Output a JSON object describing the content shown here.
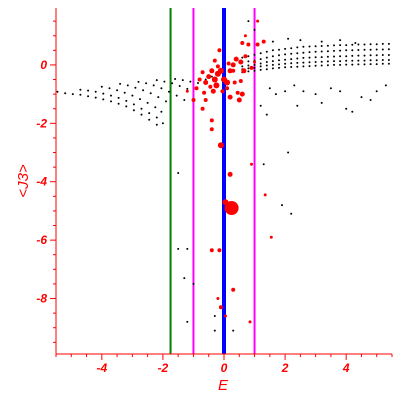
{
  "chart_data": {
    "type": "scatter",
    "title": "",
    "xlabel": "E",
    "ylabel": "<J3>",
    "xlim": [
      -5.5,
      5.5
    ],
    "ylim": [
      -9.9,
      1.95
    ],
    "grid": false,
    "x_ticks": [
      -4,
      -2,
      0,
      2,
      4
    ],
    "x_tick_labels": [
      "-4",
      "-2",
      "0",
      "2",
      "4"
    ],
    "y_ticks": [
      0,
      -2,
      -4,
      -6,
      -8
    ],
    "y_tick_labels": [
      "0",
      "-2",
      "-4",
      "-6",
      "-8"
    ],
    "vertical_lines": [
      {
        "x": -1.75,
        "color": "#008000",
        "width": "thin"
      },
      {
        "x": -1.0,
        "color": "#ff00ff",
        "width": "thin"
      },
      {
        "x": 0.0,
        "color": "#0000ff",
        "width": "thick"
      },
      {
        "x": 1.0,
        "color": "#ff00ff",
        "width": "thin"
      }
    ],
    "series": [
      {
        "color": "#000000",
        "marker": "small dot",
        "points": [
          [
            -5.45,
            -0.92
          ],
          [
            -5.2,
            -0.97
          ],
          [
            -4.95,
            -1.0
          ],
          [
            -4.7,
            -1.02
          ],
          [
            -4.45,
            -1.07
          ],
          [
            -4.2,
            -1.12
          ],
          [
            -3.95,
            -1.18
          ],
          [
            -3.7,
            -1.25
          ],
          [
            -3.45,
            -1.33
          ],
          [
            -3.2,
            -1.42
          ],
          [
            -2.95,
            -1.55
          ],
          [
            -2.7,
            -1.7
          ],
          [
            -2.45,
            -1.88
          ],
          [
            -2.2,
            -2.05
          ],
          [
            -4.7,
            -0.85
          ],
          [
            -4.45,
            -0.88
          ],
          [
            -4.2,
            -0.92
          ],
          [
            -3.95,
            -0.98
          ],
          [
            -3.7,
            -1.05
          ],
          [
            -3.45,
            -1.13
          ],
          [
            -3.2,
            -1.23
          ],
          [
            -2.95,
            -1.35
          ],
          [
            -2.7,
            -1.5
          ],
          [
            -2.45,
            -1.65
          ],
          [
            -2.2,
            -1.8
          ],
          [
            -2.0,
            -2.0
          ],
          [
            -4.0,
            -0.75
          ],
          [
            -3.75,
            -0.8
          ],
          [
            -3.5,
            -0.87
          ],
          [
            -3.25,
            -0.95
          ],
          [
            -3.0,
            -1.05
          ],
          [
            -2.75,
            -1.17
          ],
          [
            -2.5,
            -1.3
          ],
          [
            -2.25,
            -1.45
          ],
          [
            -2.05,
            -1.6
          ],
          [
            -3.4,
            -0.65
          ],
          [
            -3.15,
            -0.7
          ],
          [
            -2.9,
            -0.78
          ],
          [
            -2.65,
            -0.87
          ],
          [
            -2.4,
            -0.97
          ],
          [
            -2.15,
            -1.1
          ],
          [
            -1.9,
            -1.25
          ],
          [
            -2.8,
            -0.58
          ],
          [
            -2.55,
            -0.63
          ],
          [
            -2.3,
            -0.7
          ],
          [
            -2.05,
            -0.8
          ],
          [
            -1.8,
            -0.92
          ],
          [
            -1.55,
            -1.05
          ],
          [
            -1.3,
            -1.2
          ],
          [
            -2.2,
            -0.52
          ],
          [
            -1.95,
            -0.57
          ],
          [
            -1.7,
            -0.63
          ],
          [
            -1.45,
            -0.72
          ],
          [
            -1.2,
            -0.82
          ],
          [
            -1.6,
            -0.48
          ],
          [
            -1.35,
            -0.52
          ],
          [
            -1.1,
            -0.57
          ],
          [
            -0.85,
            -0.62
          ],
          [
            -0.6,
            -0.5
          ],
          [
            -0.4,
            -0.4
          ],
          [
            0.6,
            0.25
          ],
          [
            0.8,
            0.3
          ],
          [
            1.0,
            0.35
          ],
          [
            1.2,
            0.4
          ],
          [
            1.4,
            0.45
          ],
          [
            1.6,
            0.5
          ],
          [
            1.8,
            0.52
          ],
          [
            2.0,
            0.55
          ],
          [
            2.2,
            0.57
          ],
          [
            2.4,
            0.6
          ],
          [
            2.6,
            0.62
          ],
          [
            2.8,
            0.63
          ],
          [
            3.0,
            0.64
          ],
          [
            3.2,
            0.65
          ],
          [
            3.4,
            0.66
          ],
          [
            3.6,
            0.67
          ],
          [
            3.8,
            0.68
          ],
          [
            4.0,
            0.68
          ],
          [
            4.2,
            0.69
          ],
          [
            4.4,
            0.7
          ],
          [
            4.6,
            0.7
          ],
          [
            4.8,
            0.71
          ],
          [
            5.0,
            0.71
          ],
          [
            5.2,
            0.72
          ],
          [
            5.4,
            0.72
          ],
          [
            0.6,
            0.1
          ],
          [
            0.8,
            0.12
          ],
          [
            1.0,
            0.15
          ],
          [
            1.2,
            0.2
          ],
          [
            1.4,
            0.25
          ],
          [
            1.6,
            0.3
          ],
          [
            1.8,
            0.33
          ],
          [
            2.0,
            0.36
          ],
          [
            2.2,
            0.38
          ],
          [
            2.4,
            0.4
          ],
          [
            2.6,
            0.42
          ],
          [
            2.8,
            0.44
          ],
          [
            3.0,
            0.45
          ],
          [
            3.2,
            0.46
          ],
          [
            3.4,
            0.47
          ],
          [
            3.6,
            0.48
          ],
          [
            3.8,
            0.49
          ],
          [
            4.0,
            0.5
          ],
          [
            4.2,
            0.5
          ],
          [
            4.4,
            0.51
          ],
          [
            4.6,
            0.52
          ],
          [
            4.8,
            0.52
          ],
          [
            5.0,
            0.53
          ],
          [
            5.2,
            0.53
          ],
          [
            5.4,
            0.54
          ],
          [
            0.6,
            -0.05
          ],
          [
            0.8,
            -0.02
          ],
          [
            1.0,
            0.0
          ],
          [
            1.2,
            0.05
          ],
          [
            1.4,
            0.1
          ],
          [
            1.6,
            0.13
          ],
          [
            1.8,
            0.16
          ],
          [
            2.0,
            0.18
          ],
          [
            2.2,
            0.2
          ],
          [
            2.4,
            0.22
          ],
          [
            2.6,
            0.24
          ],
          [
            2.8,
            0.25
          ],
          [
            3.0,
            0.26
          ],
          [
            3.2,
            0.27
          ],
          [
            3.4,
            0.28
          ],
          [
            3.6,
            0.29
          ],
          [
            3.8,
            0.3
          ],
          [
            4.0,
            0.3
          ],
          [
            4.2,
            0.31
          ],
          [
            4.4,
            0.32
          ],
          [
            4.6,
            0.32
          ],
          [
            4.8,
            0.33
          ],
          [
            5.0,
            0.33
          ],
          [
            5.2,
            0.34
          ],
          [
            5.4,
            0.34
          ],
          [
            0.6,
            -0.15
          ],
          [
            0.8,
            -0.12
          ],
          [
            1.0,
            -0.1
          ],
          [
            1.2,
            -0.05
          ],
          [
            1.4,
            -0.02
          ],
          [
            1.6,
            0.0
          ],
          [
            1.8,
            0.02
          ],
          [
            2.0,
            0.04
          ],
          [
            2.2,
            0.06
          ],
          [
            2.4,
            0.07
          ],
          [
            2.6,
            0.08
          ],
          [
            2.8,
            0.09
          ],
          [
            3.0,
            0.1
          ],
          [
            3.2,
            0.11
          ],
          [
            3.4,
            0.12
          ],
          [
            3.6,
            0.13
          ],
          [
            3.8,
            0.13
          ],
          [
            4.0,
            0.14
          ],
          [
            4.2,
            0.14
          ],
          [
            4.4,
            0.15
          ],
          [
            4.6,
            0.15
          ],
          [
            4.8,
            0.16
          ],
          [
            5.0,
            0.16
          ],
          [
            5.2,
            0.17
          ],
          [
            5.4,
            0.17
          ],
          [
            0.6,
            -0.25
          ],
          [
            0.8,
            -0.22
          ],
          [
            1.0,
            -0.2
          ],
          [
            1.2,
            -0.17
          ],
          [
            1.4,
            -0.15
          ],
          [
            1.6,
            -0.12
          ],
          [
            1.8,
            -0.1
          ],
          [
            2.0,
            -0.08
          ],
          [
            2.2,
            -0.07
          ],
          [
            2.4,
            -0.06
          ],
          [
            2.6,
            -0.05
          ],
          [
            2.8,
            -0.04
          ],
          [
            3.0,
            -0.03
          ],
          [
            3.2,
            -0.02
          ],
          [
            3.4,
            -0.01
          ],
          [
            3.6,
            0.0
          ],
          [
            3.8,
            0.0
          ],
          [
            4.0,
            0.01
          ],
          [
            4.2,
            0.01
          ],
          [
            4.4,
            0.02
          ],
          [
            4.6,
            0.02
          ],
          [
            4.8,
            0.03
          ],
          [
            5.0,
            0.03
          ],
          [
            5.2,
            0.04
          ],
          [
            5.4,
            0.04
          ],
          [
            1.0,
            1.2
          ],
          [
            2.1,
            0.9
          ],
          [
            2.5,
            0.85
          ],
          [
            3.2,
            0.8
          ],
          [
            3.8,
            0.85
          ],
          [
            4.3,
            0.75
          ],
          [
            1.6,
            0.8
          ],
          [
            0.8,
            1.5
          ],
          [
            1.5,
            -0.8
          ],
          [
            1.7,
            -1.0
          ],
          [
            2.3,
            -0.7
          ],
          [
            2.4,
            -1.4
          ],
          [
            2.6,
            -0.9
          ],
          [
            3.0,
            -1.0
          ],
          [
            3.2,
            -1.3
          ],
          [
            3.5,
            -0.8
          ],
          [
            3.8,
            -0.9
          ],
          [
            4.0,
            -1.5
          ],
          [
            4.2,
            -1.6
          ],
          [
            4.5,
            -1.1
          ],
          [
            4.8,
            -1.2
          ],
          [
            5.0,
            -0.9
          ],
          [
            5.3,
            -0.7
          ],
          [
            1.4,
            -1.7
          ],
          [
            1.2,
            -1.4
          ],
          [
            2.0,
            -0.9
          ],
          [
            -1.5,
            -6.3
          ],
          [
            -1.2,
            -6.3
          ],
          [
            -1.3,
            -7.3
          ],
          [
            -1.0,
            -7.5
          ],
          [
            -1.2,
            -8.8
          ],
          [
            -0.3,
            -8.6
          ],
          [
            -0.3,
            -9.1
          ],
          [
            0.3,
            -9.1
          ],
          [
            -1.5,
            -3.7
          ],
          [
            2.2,
            -5.1
          ],
          [
            1.9,
            -4.8
          ],
          [
            2.1,
            -3.0
          ],
          [
            1.3,
            -3.4
          ]
        ]
      },
      {
        "color": "#ff0000",
        "marker": "filled dot",
        "points": [
          [
            -0.1,
            -2.75,
            3
          ],
          [
            0.25,
            -4.9,
            7
          ],
          [
            0.05,
            -4.7,
            3
          ],
          [
            0.2,
            -3.75,
            2.5
          ],
          [
            -0.4,
            -6.35,
            2
          ],
          [
            -0.15,
            -6.35,
            2
          ],
          [
            0.3,
            -7.7,
            2
          ],
          [
            -0.1,
            -8.3,
            2
          ],
          [
            -0.2,
            -8.0,
            1.5
          ],
          [
            0.05,
            -8.6,
            1.5
          ],
          [
            1.35,
            -4.45,
            1.5
          ],
          [
            0.9,
            -3.4,
            1.5
          ],
          [
            1.55,
            -5.9,
            1.5
          ],
          [
            0.85,
            -8.8,
            1.5
          ],
          [
            -0.4,
            -2.2,
            2
          ],
          [
            -0.7,
            -1.5,
            2
          ],
          [
            -1.0,
            -1.2,
            2
          ],
          [
            -0.6,
            -1.2,
            2
          ],
          [
            -0.4,
            -1.9,
            2
          ],
          [
            0.2,
            -1.1,
            2.5
          ],
          [
            0.5,
            -1.2,
            2.5
          ],
          [
            0.6,
            -1.0,
            2.5
          ],
          [
            0.45,
            -0.95,
            2
          ],
          [
            -0.2,
            -0.3,
            3
          ],
          [
            -0.3,
            -0.5,
            3
          ],
          [
            -0.25,
            -0.7,
            3
          ],
          [
            -0.1,
            -0.2,
            3
          ],
          [
            0.0,
            -0.5,
            3
          ],
          [
            0.1,
            -0.6,
            3
          ],
          [
            -0.4,
            -0.2,
            2.5
          ],
          [
            -0.5,
            -0.4,
            2.5
          ],
          [
            -0.6,
            -0.6,
            2.5
          ],
          [
            -0.35,
            -0.9,
            2.5
          ],
          [
            0.2,
            -0.2,
            2.5
          ],
          [
            0.3,
            0.0,
            2.5
          ],
          [
            0.4,
            0.2,
            2.5
          ],
          [
            0.55,
            0.1,
            2.5
          ],
          [
            0.65,
            -0.2,
            2.5
          ],
          [
            0.8,
            0.7,
            2
          ],
          [
            1.1,
            0.7,
            2
          ],
          [
            0.6,
            0.75,
            2
          ],
          [
            1.3,
            0.8,
            2
          ],
          [
            0.3,
            -0.2,
            2
          ],
          [
            -0.15,
            0.5,
            2
          ],
          [
            0.9,
            -0.1,
            2
          ],
          [
            0.7,
            0.3,
            2
          ],
          [
            -0.2,
            -0.05,
            2
          ],
          [
            0.15,
            0.05,
            2
          ],
          [
            -0.3,
            0.15,
            2
          ],
          [
            -0.7,
            -0.25,
            2
          ],
          [
            -0.8,
            -0.5,
            2
          ],
          [
            -0.9,
            -0.8,
            2
          ],
          [
            -0.65,
            -0.95,
            2
          ],
          [
            -0.45,
            -0.75,
            2
          ],
          [
            -0.05,
            -0.9,
            2
          ],
          [
            0.1,
            -0.8,
            2
          ],
          [
            0.35,
            -0.6,
            2
          ],
          [
            0.55,
            -0.55,
            2
          ],
          [
            1.1,
            1.5,
            1.5
          ],
          [
            -1.2,
            -0.9,
            1.5
          ],
          [
            0.7,
            1.0,
            1.5
          ],
          [
            1.0,
            0.1,
            1.5
          ]
        ]
      }
    ]
  }
}
